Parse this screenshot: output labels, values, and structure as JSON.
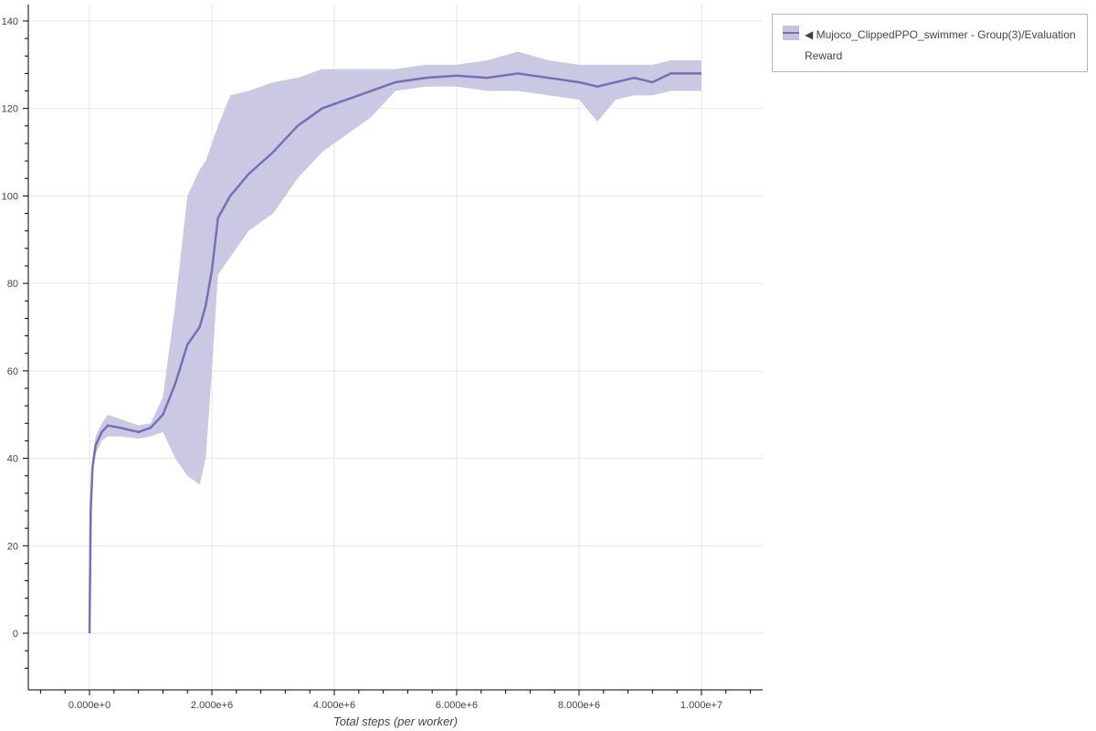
{
  "chart_data": {
    "type": "area",
    "title": "",
    "xlabel": "Total steps (per worker)",
    "ylabel": "",
    "xlim": [
      -1000000,
      11000000
    ],
    "ylim": [
      -12,
      144
    ],
    "grid": true,
    "legend_position": "outside-top-right",
    "x_ticks": [
      0,
      2000000,
      4000000,
      6000000,
      8000000,
      10000000
    ],
    "x_tick_labels": [
      "0.000e+0",
      "2.000e+6",
      "4.000e+6",
      "6.000e+6",
      "8.000e+6",
      "1.000e+7"
    ],
    "y_ticks": [
      0,
      20,
      40,
      60,
      80,
      100,
      120,
      140
    ],
    "y_tick_labels": [
      "0",
      "20",
      "40",
      "60",
      "80",
      "100",
      "120",
      "140"
    ],
    "series": [
      {
        "name": "Mujoco_ClippedPPO_swimmer - Group(3)/Evaluation Reward",
        "line_color": "#7370b8",
        "band_color": "#c5c2e0",
        "x": [
          0,
          20000,
          50000,
          100000,
          200000,
          300000,
          500000,
          800000,
          1000000,
          1200000,
          1400000,
          1600000,
          1800000,
          1900000,
          2000000,
          2100000,
          2300000,
          2600000,
          3000000,
          3400000,
          3800000,
          4200000,
          4600000,
          5000000,
          5500000,
          6000000,
          6500000,
          7000000,
          7500000,
          8000000,
          8300000,
          8600000,
          8900000,
          9200000,
          9500000,
          10000000
        ],
        "mean": [
          0,
          28,
          38,
          43,
          46,
          47.5,
          47,
          46,
          47,
          50,
          57,
          66,
          70,
          75,
          83,
          95,
          100,
          105,
          110,
          116,
          120,
          122,
          124,
          126,
          127,
          127.5,
          127,
          128,
          127,
          126,
          125,
          126,
          127,
          126,
          128,
          128
        ],
        "lower": [
          0,
          25,
          36,
          41,
          44,
          45,
          45,
          44.5,
          45,
          46,
          40,
          36,
          34,
          40,
          60,
          82,
          86,
          92,
          96,
          104,
          110,
          114,
          118,
          124,
          125,
          125,
          124,
          124,
          123,
          122,
          117,
          122,
          123,
          123,
          124,
          124
        ],
        "upper": [
          0,
          30,
          40,
          45,
          48,
          50,
          49,
          47.5,
          48,
          54,
          75,
          100,
          106,
          108,
          112,
          116,
          123,
          124,
          126,
          127,
          129,
          129,
          129,
          129,
          130,
          130,
          131,
          133,
          131,
          130,
          130,
          130,
          130,
          130,
          131,
          131
        ]
      }
    ]
  },
  "legend": {
    "symbol": "◀",
    "label_line1": "Mujoco_ClippedPPO_swimmer - Group(3)/Evaluation",
    "label_line2": "Reward"
  }
}
